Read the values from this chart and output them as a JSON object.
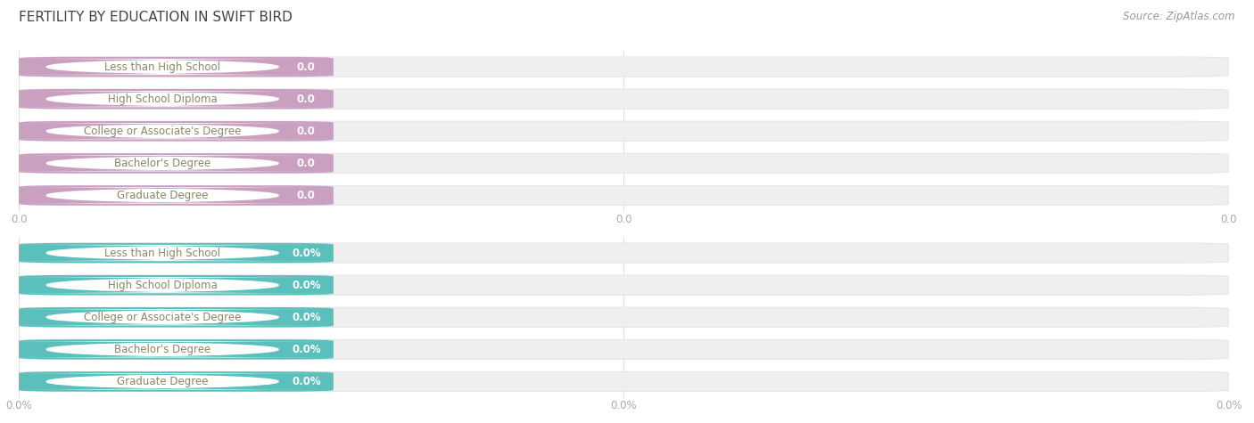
{
  "title": "FERTILITY BY EDUCATION IN SWIFT BIRD",
  "source": "Source: ZipAtlas.com",
  "categories": [
    "Less than High School",
    "High School Diploma",
    "College or Associate's Degree",
    "Bachelor's Degree",
    "Graduate Degree"
  ],
  "top_values": [
    0.0,
    0.0,
    0.0,
    0.0,
    0.0
  ],
  "bottom_values": [
    0.0,
    0.0,
    0.0,
    0.0,
    0.0
  ],
  "top_color": "#c9a0c0",
  "bottom_color": "#5bbfbc",
  "bar_bg_color": "#efefef",
  "bar_bg_border_color": "#e0e0e0",
  "top_xtick_labels": [
    "0.0",
    "0.0",
    "0.0"
  ],
  "bottom_xtick_labels": [
    "0.0%",
    "0.0%",
    "0.0%"
  ],
  "title_fontsize": 11,
  "label_fontsize": 8.5,
  "value_fontsize": 8.5,
  "tick_fontsize": 8.5,
  "source_fontsize": 8.5,
  "bg_color": "#ffffff",
  "label_text_color": "#888866",
  "value_text_color": "#ffffff",
  "tick_color": "#aaaaaa",
  "grid_color": "#e0e0e0"
}
